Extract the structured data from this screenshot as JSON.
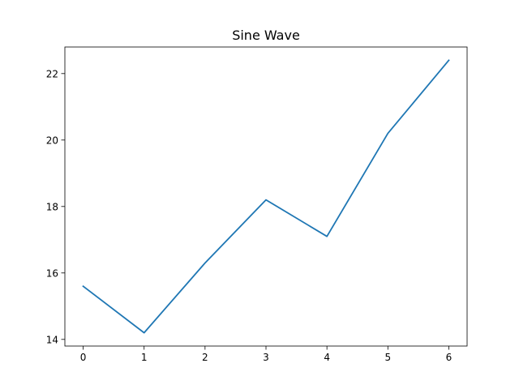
{
  "chart_data": {
    "type": "line",
    "title": "Sine Wave",
    "xlabel": "",
    "ylabel": "",
    "x": [
      0,
      1,
      2,
      3,
      4,
      5,
      6
    ],
    "series": [
      {
        "values": [
          15.6,
          14.2,
          16.3,
          18.2,
          17.1,
          20.2,
          22.4
        ],
        "color": "#1f77b4"
      }
    ],
    "xlim": [
      -0.3,
      6.3
    ],
    "ylim": [
      13.8,
      22.8
    ],
    "xticks": [
      0,
      1,
      2,
      3,
      4,
      5,
      6
    ],
    "xtick_labels": [
      "0",
      "1",
      "2",
      "3",
      "4",
      "5",
      "6"
    ],
    "yticks": [
      14,
      16,
      18,
      20,
      22
    ],
    "ytick_labels": [
      "14",
      "16",
      "18",
      "20",
      "22"
    ],
    "grid": false,
    "legend": false
  }
}
